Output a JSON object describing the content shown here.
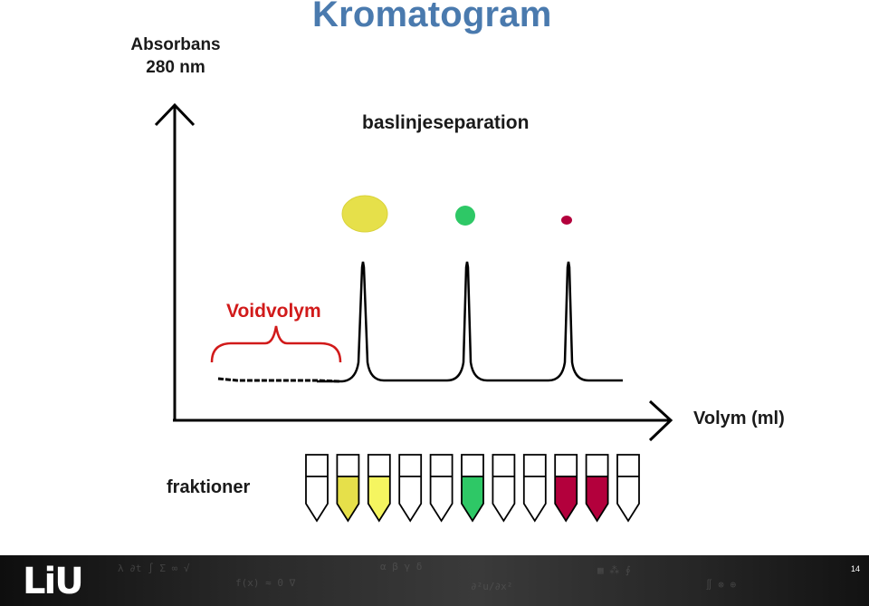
{
  "slide": {
    "title": "Kromatogram",
    "y_axis_label_line1": "Absorbans",
    "y_axis_label_line2": "280 nm",
    "separation_label": "baslinjeseparation",
    "void_label": "Voidvolym",
    "x_axis_label": "Volym (ml)",
    "fractions_label": "fraktioner",
    "page_number": "14",
    "logo_text": "LiU"
  },
  "colors": {
    "title": "#4a7aae",
    "void": "#d11a1a",
    "yellow": "#e6e04a",
    "light_yellow": "#f5f560",
    "green": "#2ec866",
    "crimson": "#b3003c"
  },
  "molecules": [
    {
      "name": "large-molecule",
      "color": "#e6e04a"
    },
    {
      "name": "medium-molecule",
      "color": "#2ec866"
    },
    {
      "name": "small-molecule",
      "color": "#b3003c"
    }
  ],
  "tubes": [
    {
      "fill": "none"
    },
    {
      "fill": "#e6e04a"
    },
    {
      "fill": "#f5f560"
    },
    {
      "fill": "none"
    },
    {
      "fill": "none"
    },
    {
      "fill": "#2ec866"
    },
    {
      "fill": "none"
    },
    {
      "fill": "none"
    },
    {
      "fill": "#b3003c"
    },
    {
      "fill": "#b3003c"
    },
    {
      "fill": "none"
    }
  ]
}
